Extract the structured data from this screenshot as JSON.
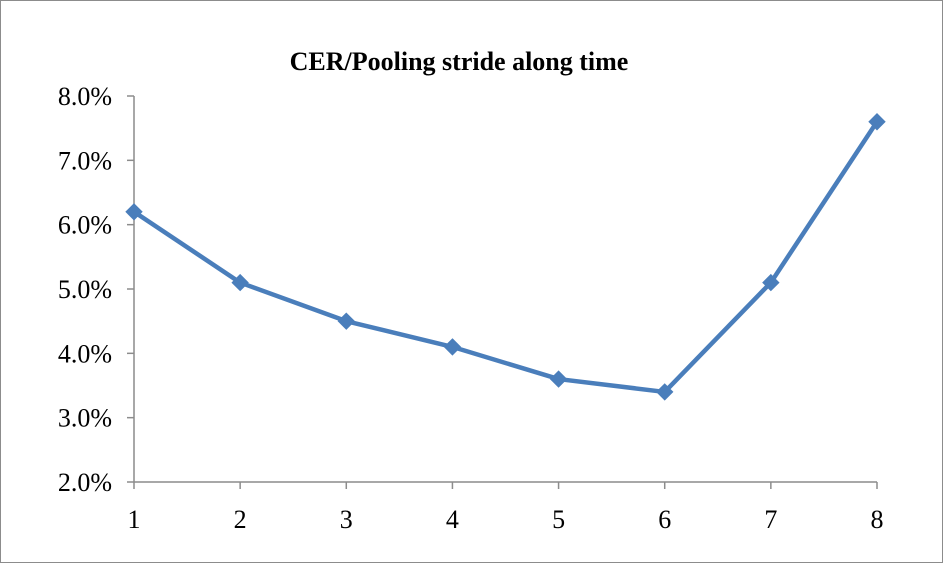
{
  "chart_data": {
    "type": "line",
    "title": "CER/Pooling stride along time",
    "xlabel": "",
    "ylabel": "",
    "x": [
      1,
      2,
      3,
      4,
      5,
      6,
      7,
      8
    ],
    "x_tick_labels": [
      "1",
      "2",
      "3",
      "4",
      "5",
      "6",
      "7",
      "8"
    ],
    "y_tick_values": [
      2.0,
      3.0,
      4.0,
      5.0,
      6.0,
      7.0,
      8.0
    ],
    "y_tick_labels": [
      "2.0%",
      "3.0%",
      "4.0%",
      "5.0%",
      "6.0%",
      "7.0%",
      "8.0%"
    ],
    "ylim": [
      2.0,
      8.0
    ],
    "xlim": [
      1,
      8
    ],
    "series": [
      {
        "values": [
          6.2,
          5.1,
          4.5,
          4.1,
          3.6,
          3.4,
          5.1,
          7.6
        ],
        "color": "#4a7ebb",
        "marker": "diamond"
      }
    ],
    "grid": false,
    "legend": "none"
  }
}
